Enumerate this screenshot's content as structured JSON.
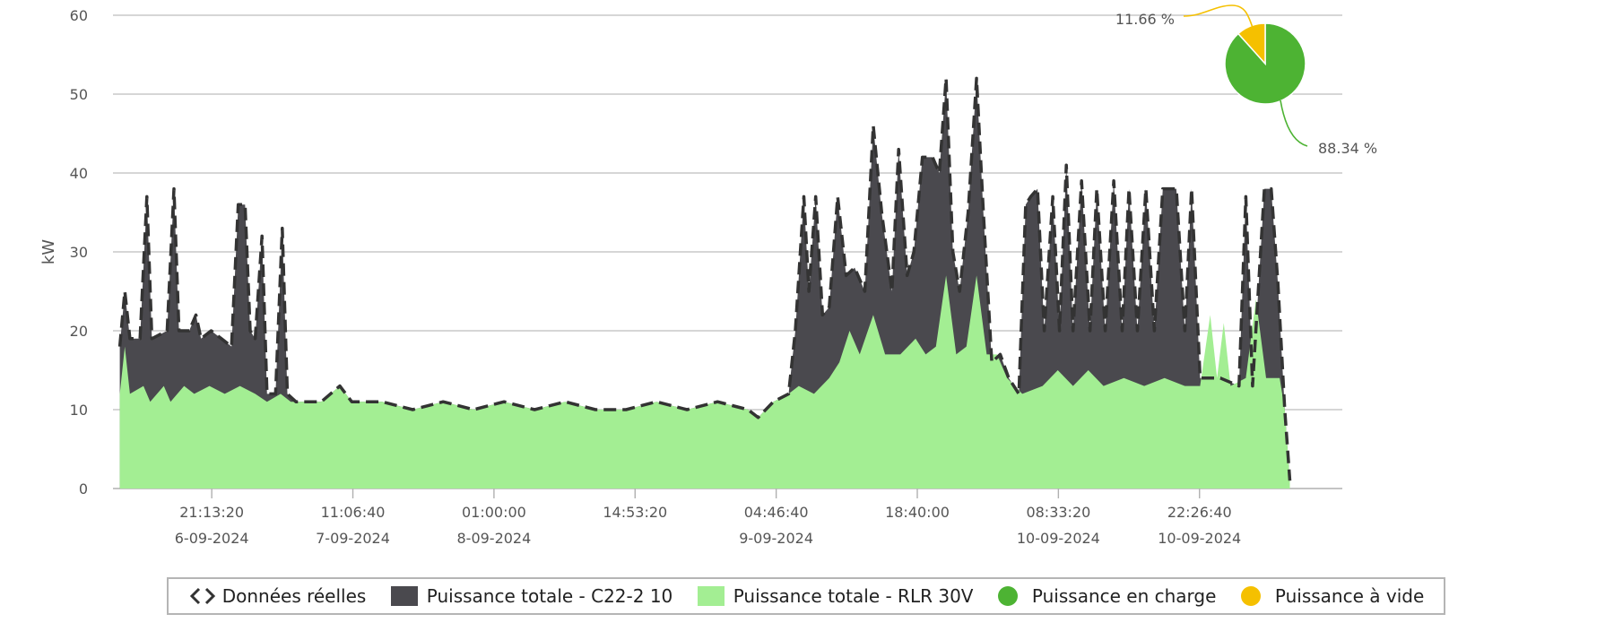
{
  "chart_data": {
    "type": "area",
    "ylabel": "kW",
    "ylim": [
      0,
      60
    ],
    "yticks": [
      "0",
      "10",
      "20",
      "30",
      "40",
      "50",
      "60"
    ],
    "grid": true,
    "xlim": [
      "2024-09-06 11:30",
      "2024-09-11 12:30"
    ],
    "xticks": [
      {
        "time": "21:13:20",
        "date": "6-09-2024",
        "t": "2024-09-06 21:13:20"
      },
      {
        "time": "11:06:40",
        "date": "7-09-2024",
        "t": "2024-09-07 11:06:40"
      },
      {
        "time": "01:00:00",
        "date": "8-09-2024",
        "t": "2024-09-08 01:00:00"
      },
      {
        "time": "14:53:20",
        "date": "",
        "t": "2024-09-08 14:53:20"
      },
      {
        "time": "04:46:40",
        "date": "9-09-2024",
        "t": "2024-09-09 04:46:40"
      },
      {
        "time": "18:40:00",
        "date": "",
        "t": "2024-09-09 18:40:00"
      },
      {
        "time": "08:33:20",
        "date": "10-09-2024",
        "t": "2024-09-10 08:33:20"
      },
      {
        "time": "22:26:40",
        "date": "10-09-2024",
        "t": "2024-09-10 22:26:40"
      }
    ],
    "series": [
      {
        "name": "Puissance totale - C22-2 10",
        "color": "#4a494e",
        "line_color": "#333333",
        "style": "dashed",
        "points": [
          [
            "2024-09-06 12:10",
            18
          ],
          [
            "2024-09-06 12:40",
            25
          ],
          [
            "2024-09-06 13:10",
            19
          ],
          [
            "2024-09-06 14:10",
            19
          ],
          [
            "2024-09-06 14:50",
            37
          ],
          [
            "2024-09-06 15:20",
            19
          ],
          [
            "2024-09-06 16:50",
            20
          ],
          [
            "2024-09-06 17:30",
            38
          ],
          [
            "2024-09-06 18:00",
            20
          ],
          [
            "2024-09-06 19:00",
            20
          ],
          [
            "2024-09-06 19:40",
            22
          ],
          [
            "2024-09-06 20:10",
            19
          ],
          [
            "2024-09-06 21:10",
            20
          ],
          [
            "2024-09-06 22:10",
            19
          ],
          [
            "2024-09-06 23:10",
            18
          ],
          [
            "2024-09-06 23:50",
            36
          ],
          [
            "2024-09-07 00:30",
            36
          ],
          [
            "2024-09-07 01:00",
            20
          ],
          [
            "2024-09-07 01:30",
            19
          ],
          [
            "2024-09-07 02:10",
            32
          ],
          [
            "2024-09-07 02:40",
            12
          ],
          [
            "2024-09-07 03:30",
            12
          ],
          [
            "2024-09-07 04:10",
            33
          ],
          [
            "2024-09-07 04:40",
            12
          ],
          [
            "2024-09-07 05:30",
            11
          ],
          [
            "2024-09-07 08:00",
            11
          ],
          [
            "2024-09-07 09:50",
            13
          ],
          [
            "2024-09-07 11:00",
            11
          ],
          [
            "2024-09-07 14:00",
            11
          ],
          [
            "2024-09-07 17:00",
            10
          ],
          [
            "2024-09-07 20:00",
            11
          ],
          [
            "2024-09-07 23:00",
            10
          ],
          [
            "2024-09-08 02:00",
            11
          ],
          [
            "2024-09-08 05:00",
            10
          ],
          [
            "2024-09-08 08:00",
            11
          ],
          [
            "2024-09-08 11:00",
            10
          ],
          [
            "2024-09-08 14:00",
            10
          ],
          [
            "2024-09-08 17:00",
            11
          ],
          [
            "2024-09-08 20:00",
            10
          ],
          [
            "2024-09-08 23:00",
            11
          ],
          [
            "2024-09-09 02:00",
            10
          ],
          [
            "2024-09-09 03:00",
            9
          ],
          [
            "2024-09-09 04:30",
            11
          ],
          [
            "2024-09-09 06:00",
            12
          ],
          [
            "2024-09-09 06:40",
            20
          ],
          [
            "2024-09-09 07:30",
            37
          ],
          [
            "2024-09-09 08:00",
            25
          ],
          [
            "2024-09-09 08:40",
            37
          ],
          [
            "2024-09-09 09:20",
            22
          ],
          [
            "2024-09-09 10:00",
            23
          ],
          [
            "2024-09-09 10:50",
            37
          ],
          [
            "2024-09-09 11:40",
            27
          ],
          [
            "2024-09-09 12:30",
            28
          ],
          [
            "2024-09-09 13:30",
            25
          ],
          [
            "2024-09-09 14:20",
            46
          ],
          [
            "2024-09-09 15:10",
            35
          ],
          [
            "2024-09-09 16:10",
            25
          ],
          [
            "2024-09-09 16:50",
            43
          ],
          [
            "2024-09-09 17:40",
            27
          ],
          [
            "2024-09-09 18:20",
            30
          ],
          [
            "2024-09-09 19:10",
            42
          ],
          [
            "2024-09-09 20:10",
            42
          ],
          [
            "2024-09-09 20:50",
            40
          ],
          [
            "2024-09-09 21:30",
            52
          ],
          [
            "2024-09-09 22:10",
            30
          ],
          [
            "2024-09-09 22:50",
            25
          ],
          [
            "2024-09-09 23:40",
            35
          ],
          [
            "2024-09-10 00:30",
            52
          ],
          [
            "2024-09-10 01:10",
            35
          ],
          [
            "2024-09-10 02:00",
            16
          ],
          [
            "2024-09-10 02:50",
            17
          ],
          [
            "2024-09-10 03:40",
            14
          ],
          [
            "2024-09-10 04:40",
            12
          ],
          [
            "2024-09-10 05:20",
            36
          ],
          [
            "2024-09-10 05:50",
            37
          ],
          [
            "2024-09-10 06:30",
            38
          ],
          [
            "2024-09-10 07:10",
            20
          ],
          [
            "2024-09-10 08:00",
            37
          ],
          [
            "2024-09-10 08:40",
            20
          ],
          [
            "2024-09-10 09:20",
            41
          ],
          [
            "2024-09-10 10:00",
            20
          ],
          [
            "2024-09-10 10:50",
            39
          ],
          [
            "2024-09-10 11:40",
            20
          ],
          [
            "2024-09-10 12:20",
            38
          ],
          [
            "2024-09-10 13:10",
            20
          ],
          [
            "2024-09-10 14:00",
            39
          ],
          [
            "2024-09-10 14:50",
            20
          ],
          [
            "2024-09-10 15:30",
            38
          ],
          [
            "2024-09-10 16:20",
            20
          ],
          [
            "2024-09-10 17:10",
            38
          ],
          [
            "2024-09-10 18:00",
            20
          ],
          [
            "2024-09-10 18:50",
            38
          ],
          [
            "2024-09-10 20:10",
            38
          ],
          [
            "2024-09-10 21:00",
            20
          ],
          [
            "2024-09-10 21:40",
            38
          ],
          [
            "2024-09-10 22:30",
            14
          ],
          [
            "2024-09-11 00:30",
            14
          ],
          [
            "2024-09-11 02:20",
            13
          ],
          [
            "2024-09-11 03:00",
            37
          ],
          [
            "2024-09-11 03:40",
            13
          ],
          [
            "2024-09-11 04:50",
            38
          ],
          [
            "2024-09-11 05:30",
            38
          ],
          [
            "2024-09-11 06:10",
            26
          ],
          [
            "2024-09-11 06:50",
            10
          ],
          [
            "2024-09-11 07:20",
            1
          ]
        ]
      },
      {
        "name": "Puissance totale - RLR 30V",
        "color": "#a3ee93",
        "points": [
          [
            "2024-09-06 12:10",
            12
          ],
          [
            "2024-09-06 12:40",
            18
          ],
          [
            "2024-09-06 13:10",
            12
          ],
          [
            "2024-09-06 14:30",
            13
          ],
          [
            "2024-09-06 15:10",
            11
          ],
          [
            "2024-09-06 16:30",
            13
          ],
          [
            "2024-09-06 17:10",
            11
          ],
          [
            "2024-09-06 18:30",
            13
          ],
          [
            "2024-09-06 19:30",
            12
          ],
          [
            "2024-09-06 21:00",
            13
          ],
          [
            "2024-09-06 22:30",
            12
          ],
          [
            "2024-09-07 00:00",
            13
          ],
          [
            "2024-09-07 01:30",
            12
          ],
          [
            "2024-09-07 02:40",
            11
          ],
          [
            "2024-09-07 04:00",
            12
          ],
          [
            "2024-09-07 05:00",
            11
          ],
          [
            "2024-09-07 08:00",
            11
          ],
          [
            "2024-09-07 09:50",
            13
          ],
          [
            "2024-09-07 11:00",
            11
          ],
          [
            "2024-09-07 14:00",
            11
          ],
          [
            "2024-09-07 17:00",
            10
          ],
          [
            "2024-09-07 20:00",
            11
          ],
          [
            "2024-09-07 23:00",
            10
          ],
          [
            "2024-09-08 02:00",
            11
          ],
          [
            "2024-09-08 05:00",
            10
          ],
          [
            "2024-09-08 08:00",
            11
          ],
          [
            "2024-09-08 11:00",
            10
          ],
          [
            "2024-09-08 14:00",
            10
          ],
          [
            "2024-09-08 17:00",
            11
          ],
          [
            "2024-09-08 20:00",
            10
          ],
          [
            "2024-09-08 23:00",
            11
          ],
          [
            "2024-09-09 02:00",
            10
          ],
          [
            "2024-09-09 03:00",
            9
          ],
          [
            "2024-09-09 04:30",
            11
          ],
          [
            "2024-09-09 06:00",
            12
          ],
          [
            "2024-09-09 07:00",
            13
          ],
          [
            "2024-09-09 08:30",
            12
          ],
          [
            "2024-09-09 10:00",
            14
          ],
          [
            "2024-09-09 11:00",
            16
          ],
          [
            "2024-09-09 12:00",
            20
          ],
          [
            "2024-09-09 13:00",
            17
          ],
          [
            "2024-09-09 14:20",
            22
          ],
          [
            "2024-09-09 15:30",
            17
          ],
          [
            "2024-09-09 17:00",
            17
          ],
          [
            "2024-09-09 18:30",
            19
          ],
          [
            "2024-09-09 19:30",
            17
          ],
          [
            "2024-09-09 20:30",
            18
          ],
          [
            "2024-09-09 21:30",
            27
          ],
          [
            "2024-09-09 22:30",
            17
          ],
          [
            "2024-09-09 23:30",
            18
          ],
          [
            "2024-09-10 00:30",
            27
          ],
          [
            "2024-09-10 01:30",
            17
          ],
          [
            "2024-09-10 02:30",
            17
          ],
          [
            "2024-09-10 03:30",
            14
          ],
          [
            "2024-09-10 05:00",
            12
          ],
          [
            "2024-09-10 07:00",
            13
          ],
          [
            "2024-09-10 08:30",
            15
          ],
          [
            "2024-09-10 10:00",
            13
          ],
          [
            "2024-09-10 11:30",
            15
          ],
          [
            "2024-09-10 13:00",
            13
          ],
          [
            "2024-09-10 15:00",
            14
          ],
          [
            "2024-09-10 17:00",
            13
          ],
          [
            "2024-09-10 19:00",
            14
          ],
          [
            "2024-09-10 21:00",
            13
          ],
          [
            "2024-09-10 22:30",
            13
          ],
          [
            "2024-09-10 23:30",
            22
          ],
          [
            "2024-09-11 00:10",
            14
          ],
          [
            "2024-09-11 00:50",
            21
          ],
          [
            "2024-09-11 01:30",
            13
          ],
          [
            "2024-09-11 03:00",
            14
          ],
          [
            "2024-09-11 04:00",
            24
          ],
          [
            "2024-09-11 05:00",
            14
          ],
          [
            "2024-09-11 06:20",
            14
          ],
          [
            "2024-09-11 06:50",
            10
          ],
          [
            "2024-09-11 07:20",
            1
          ]
        ]
      }
    ],
    "pie": {
      "slices": [
        {
          "name": "Puissance en charge",
          "value": 88.34,
          "label": "88.34 %",
          "color": "#4db333"
        },
        {
          "name": "Puissance à vide",
          "value": 11.66,
          "label": "11.66 %",
          "color": "#f5c000"
        }
      ]
    },
    "legend": {
      "position": "bottom",
      "items": [
        {
          "label": "Données réelles",
          "icon": "chevrons-left-right-icon"
        },
        {
          "label": "Puissance totale - C22-2 10",
          "color": "#4a494e",
          "shape": "rect"
        },
        {
          "label": "Puissance totale - RLR 30V",
          "color": "#a3ee93",
          "shape": "rect"
        },
        {
          "label": "Puissance en charge",
          "color": "#4db333",
          "shape": "circle"
        },
        {
          "label": "Puissance à vide",
          "color": "#f5c000",
          "shape": "circle"
        }
      ]
    }
  }
}
